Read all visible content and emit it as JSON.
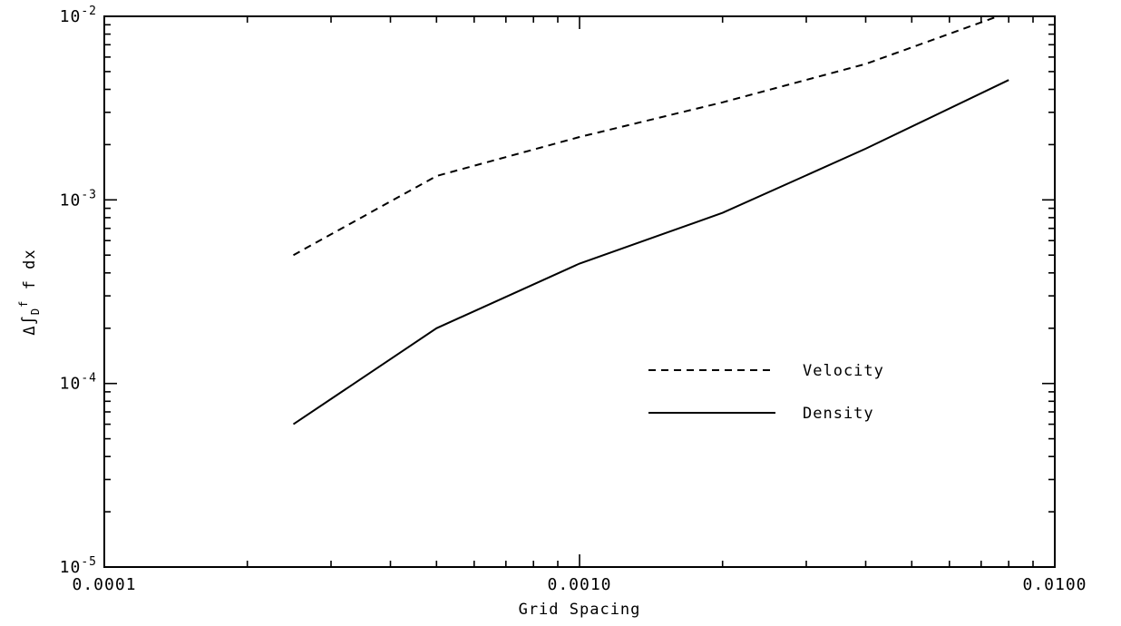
{
  "page": {
    "background_color": "#ffffff",
    "foreground_color": "#000000"
  },
  "chart_data": {
    "type": "line",
    "title": "",
    "xlabel": "Grid Spacing",
    "ylabel": {
      "prefix": "Δ∫",
      "sub": "D",
      "sup": "f",
      "suffix": " f dx"
    },
    "x_scale": "log",
    "y_scale": "log",
    "xlim": [
      0.0001,
      0.01
    ],
    "ylim": [
      1e-05,
      0.01
    ],
    "grid": false,
    "line_color": "#000000",
    "x_tick_labels": [
      {
        "value": 0.0001,
        "label": "0.0001"
      },
      {
        "value": 0.001,
        "label": "0.0010"
      },
      {
        "value": 0.01,
        "label": "0.0100"
      }
    ],
    "y_tick_labels": [
      {
        "value": 0.01,
        "base": "10",
        "exp": "-2"
      },
      {
        "value": 0.001,
        "base": "10",
        "exp": "-3"
      },
      {
        "value": 0.0001,
        "base": "10",
        "exp": "-4"
      },
      {
        "value": 1e-05,
        "base": "10",
        "exp": "-5"
      }
    ],
    "series": [
      {
        "name": "Velocity",
        "style": "dashed",
        "x": [
          0.00025,
          0.0005,
          0.001,
          0.002,
          0.004,
          0.008
        ],
        "y": [
          0.0005,
          0.00135,
          0.0022,
          0.0034,
          0.0055,
          0.0105
        ]
      },
      {
        "name": "Density",
        "style": "solid",
        "x": [
          0.00025,
          0.0005,
          0.001,
          0.002,
          0.004,
          0.008
        ],
        "y": [
          6e-05,
          0.0002,
          0.00045,
          0.00085,
          0.0019,
          0.0045
        ]
      }
    ],
    "legend": {
      "position": "center-right",
      "entries": [
        {
          "label": "Velocity",
          "style": "dashed"
        },
        {
          "label": "Density",
          "style": "solid"
        }
      ]
    }
  }
}
